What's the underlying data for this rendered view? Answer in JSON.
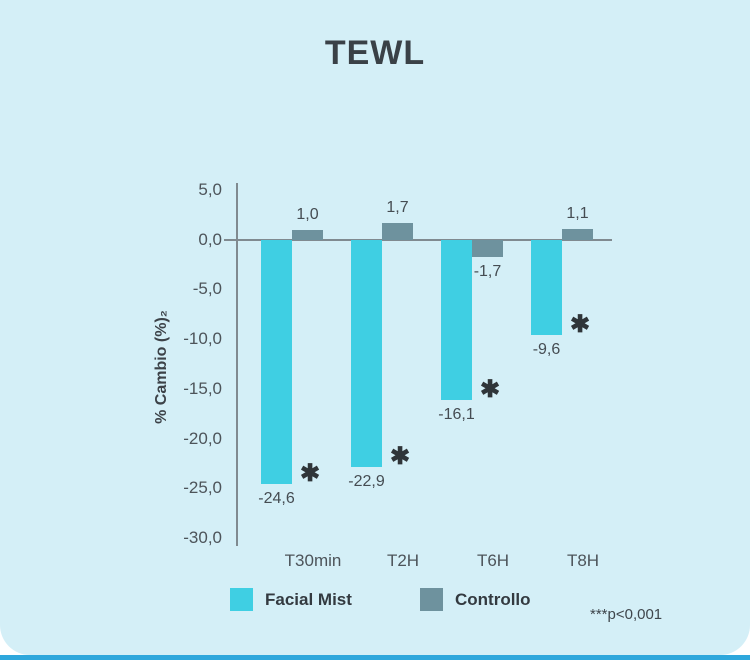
{
  "chart_data": {
    "type": "bar",
    "title": "TEWL",
    "ylabel": "% Cambio (%)₂",
    "categories": [
      "T30min",
      "T2H",
      "T6H",
      "T8H"
    ],
    "series": [
      {
        "name": "Facial Mist",
        "color": "#3fcfe3",
        "values": [
          -24.6,
          -22.9,
          -16.1,
          -9.6
        ],
        "labels": [
          "-24,6",
          "-22,9",
          "-16,1",
          "-9,6"
        ],
        "significance": [
          "✱",
          "✱",
          "✱",
          "✱"
        ]
      },
      {
        "name": "Controllo",
        "color": "#6e929e",
        "values": [
          1.0,
          1.7,
          -1.7,
          1.1
        ],
        "labels": [
          "1,0",
          "1,7",
          "-1,7",
          "1,1"
        ]
      }
    ],
    "ylim": [
      -30,
      5
    ],
    "yticks": [
      5,
      0,
      -5,
      -10,
      -15,
      -20,
      -25,
      -30
    ],
    "ytick_labels": [
      "5,0",
      "0,0",
      "-5,0",
      "-10,0",
      "-15,0",
      "-20,0",
      "-25,0",
      "-30,0"
    ],
    "grid": false,
    "legend_position": "bottom",
    "significance_note": "***p<0,001"
  },
  "page": {
    "colors": {
      "panel_background": "#d4eff7",
      "bottom_strip": "#2ea7dc",
      "axis_line": "#808a90",
      "title_text": "#3a4147"
    }
  }
}
